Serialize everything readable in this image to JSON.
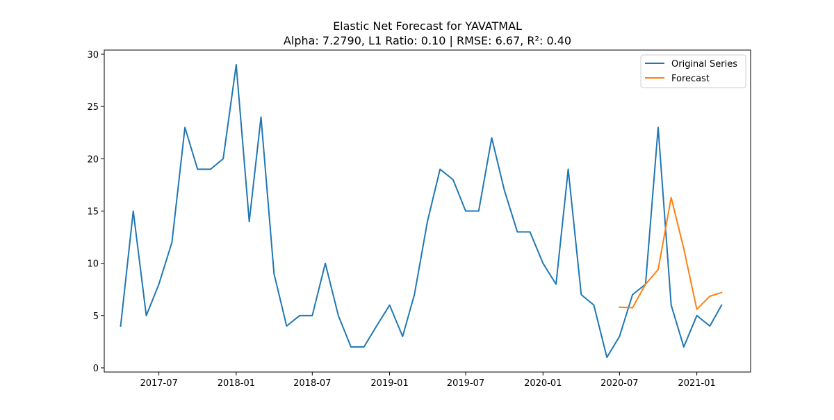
{
  "chart_data": {
    "type": "line",
    "title": "Elastic Net Forecast for YAVATMAL",
    "subtitle": "Alpha: 7.2790, L1 Ratio: 0.10 | RMSE: 6.67, R²: 0.40",
    "xlabel": "",
    "ylabel": "",
    "x_type": "date",
    "xlim": [
      "2017-02-21",
      "2021-05-09"
    ],
    "ylim": [
      -0.4,
      30.4
    ],
    "x_ticks": [
      "2017-07",
      "2018-01",
      "2018-07",
      "2019-01",
      "2019-07",
      "2020-01",
      "2020-07",
      "2021-01"
    ],
    "y_ticks": [
      0,
      5,
      10,
      15,
      20,
      25,
      30
    ],
    "grid": false,
    "legend_position": "top-right",
    "series": [
      {
        "name": "Original Series",
        "color": "#1f77b4",
        "points": [
          [
            "2017-04-01",
            4
          ],
          [
            "2017-05-01",
            15
          ],
          [
            "2017-06-01",
            5
          ],
          [
            "2017-07-01",
            8
          ],
          [
            "2017-08-01",
            12
          ],
          [
            "2017-09-01",
            23
          ],
          [
            "2017-10-01",
            19
          ],
          [
            "2017-11-01",
            19
          ],
          [
            "2017-12-01",
            20
          ],
          [
            "2018-01-01",
            29
          ],
          [
            "2018-02-01",
            14
          ],
          [
            "2018-03-01",
            24
          ],
          [
            "2018-04-01",
            9
          ],
          [
            "2018-05-01",
            4
          ],
          [
            "2018-06-01",
            5
          ],
          [
            "2018-07-01",
            5
          ],
          [
            "2018-08-01",
            10
          ],
          [
            "2018-09-01",
            5
          ],
          [
            "2018-10-01",
            2
          ],
          [
            "2018-11-01",
            2
          ],
          [
            "2018-12-01",
            4
          ],
          [
            "2019-01-01",
            6
          ],
          [
            "2019-02-01",
            3
          ],
          [
            "2019-03-01",
            7
          ],
          [
            "2019-04-01",
            14
          ],
          [
            "2019-05-01",
            19
          ],
          [
            "2019-06-01",
            18
          ],
          [
            "2019-07-01",
            15
          ],
          [
            "2019-08-01",
            15
          ],
          [
            "2019-09-01",
            22
          ],
          [
            "2019-10-01",
            17
          ],
          [
            "2019-11-01",
            13
          ],
          [
            "2019-12-01",
            13
          ],
          [
            "2020-01-01",
            10
          ],
          [
            "2020-02-01",
            8
          ],
          [
            "2020-03-01",
            19
          ],
          [
            "2020-04-01",
            7
          ],
          [
            "2020-05-01",
            6
          ],
          [
            "2020-06-01",
            1
          ],
          [
            "2020-07-01",
            3
          ],
          [
            "2020-08-01",
            7
          ],
          [
            "2020-09-01",
            8
          ],
          [
            "2020-10-01",
            23
          ],
          [
            "2020-11-01",
            6
          ],
          [
            "2020-12-01",
            2
          ],
          [
            "2021-01-01",
            5
          ],
          [
            "2021-02-01",
            4
          ],
          [
            "2021-03-01",
            6
          ]
        ]
      },
      {
        "name": "Forecast",
        "color": "#ff7f0e",
        "points": [
          [
            "2020-07-01",
            5.8
          ],
          [
            "2020-08-01",
            5.75
          ],
          [
            "2020-09-01",
            8.0
          ],
          [
            "2020-10-01",
            9.4
          ],
          [
            "2020-11-01",
            16.3
          ],
          [
            "2020-12-01",
            11.4
          ],
          [
            "2021-01-01",
            5.6
          ],
          [
            "2021-02-01",
            6.85
          ],
          [
            "2021-03-01",
            7.2
          ]
        ]
      }
    ]
  }
}
